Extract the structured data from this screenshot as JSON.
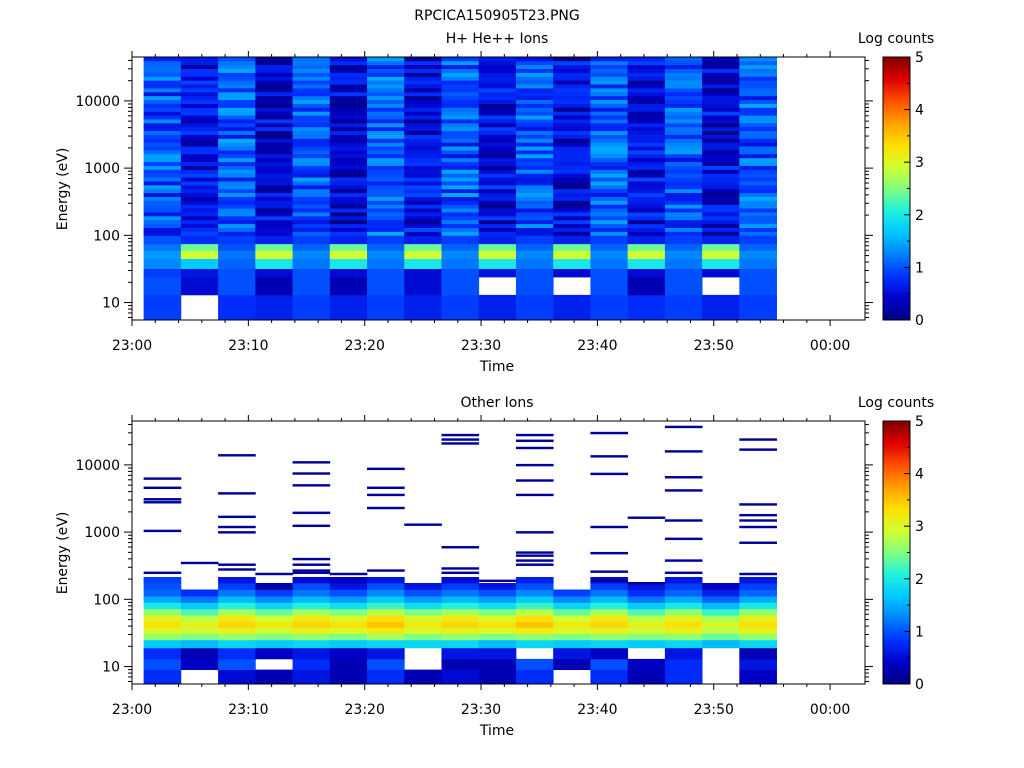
{
  "page_title": "RPCICA150905T23.PNG",
  "colors": {
    "colormap": [
      "#000080",
      "#0000c8",
      "#0030ff",
      "#0080ff",
      "#00c8ff",
      "#20f0e0",
      "#80ff80",
      "#d0ff30",
      "#ffe000",
      "#ffa000",
      "#ff5000",
      "#e00000",
      "#800000"
    ]
  },
  "chart_data": [
    {
      "type": "heatmap",
      "title": "H+ He++ Ions",
      "xlabel": "Time",
      "ylabel": "Energy (eV)",
      "x_ticks": [
        "23:00",
        "23:10",
        "23:20",
        "23:30",
        "23:40",
        "23:50",
        "00:00"
      ],
      "x_range_minutes": [
        0,
        63
      ],
      "y_scale": "log",
      "y_range": [
        5.5,
        45000
      ],
      "y_ticks": [
        "10",
        "100",
        "1000",
        "10000"
      ],
      "colorbar": {
        "label": "Log counts",
        "range": [
          0,
          5
        ],
        "ticks": [
          "0",
          "1",
          "2",
          "3",
          "4",
          "5"
        ]
      },
      "time_bins_minutes": [
        1,
        4.2,
        7.4,
        10.6,
        13.8,
        17,
        20.2,
        23.4,
        26.6,
        29.8,
        33,
        36.2,
        39.4,
        42.6,
        45.8,
        49,
        52.2,
        55.4
      ],
      "energy_bin_edges": [
        5.5,
        13,
        24,
        32,
        45,
        60,
        75,
        100,
        45000
      ],
      "low_energy_log_counts": [
        [
          0.9,
          null,
          0.8,
          0.7,
          0.9,
          0.7,
          0.9,
          0.7,
          0.9,
          0.7,
          0.9,
          0.7,
          0.9,
          0.8,
          0.9,
          0.7,
          0.9
        ],
        [
          1.0,
          0.5,
          1.0,
          0.3,
          1.0,
          0.3,
          1.0,
          0.5,
          1.0,
          null,
          1.0,
          null,
          1.0,
          0.3,
          1.0,
          null,
          1.0
        ],
        [
          0.9,
          0.6,
          1.0,
          0.5,
          1.0,
          0.5,
          1.0,
          0.5,
          1.0,
          0.6,
          1.0,
          0.5,
          1.0,
          0.5,
          1.0,
          0.5,
          1.0
        ],
        [
          1.3,
          1.7,
          1.1,
          2.0,
          1.2,
          2.0,
          1.2,
          2.0,
          1.2,
          2.0,
          1.2,
          2.0,
          1.2,
          2.0,
          1.2,
          2.0,
          1.2
        ],
        [
          1.4,
          2.9,
          1.2,
          2.9,
          1.3,
          2.9,
          1.3,
          2.9,
          1.3,
          2.9,
          1.3,
          2.9,
          1.3,
          2.9,
          1.3,
          2.9,
          1.3
        ],
        [
          1.2,
          2.4,
          1.0,
          2.4,
          1.1,
          2.4,
          1.1,
          2.4,
          1.1,
          2.4,
          1.1,
          2.4,
          1.1,
          2.4,
          1.1,
          2.4,
          1.1
        ],
        [
          1.0,
          0.8,
          0.9,
          0.7,
          0.9,
          0.7,
          0.9,
          0.7,
          0.9,
          0.7,
          0.9,
          0.7,
          0.9,
          0.7,
          0.9,
          0.7,
          0.9
        ]
      ],
      "high_energy_mean_log_counts": [
        1.0,
        0.55,
        1.05,
        0.5,
        1.0,
        0.45,
        1.1,
        0.55,
        1.05,
        0.5,
        1.0,
        0.5,
        1.05,
        0.55,
        1.0,
        0.5,
        1.05
      ]
    },
    {
      "type": "heatmap",
      "title": "Other Ions",
      "xlabel": "Time",
      "ylabel": "Energy (eV)",
      "x_ticks": [
        "23:00",
        "23:10",
        "23:20",
        "23:30",
        "23:40",
        "23:50",
        "00:00"
      ],
      "x_range_minutes": [
        0,
        63
      ],
      "y_scale": "log",
      "y_range": [
        5.5,
        45000
      ],
      "y_ticks": [
        "10",
        "100",
        "1000",
        "10000"
      ],
      "colorbar": {
        "label": "Log counts",
        "range": [
          0,
          5
        ],
        "ticks": [
          "0",
          "1",
          "2",
          "3",
          "4",
          "5"
        ]
      },
      "time_bins_minutes": [
        1,
        4.2,
        7.4,
        10.6,
        13.8,
        17,
        20.2,
        23.4,
        26.6,
        29.8,
        33,
        36.2,
        39.4,
        42.6,
        45.8,
        49,
        52.2,
        55.4
      ],
      "energy_bins": [
        {
          "range": [
            5.5,
            9
          ],
          "log_counts": [
            0.8,
            null,
            0.5,
            0.3,
            0.6,
            0.3,
            0.8,
            0.3,
            0.5,
            0.3,
            0.8,
            null,
            0.8,
            0.3,
            0.8,
            null,
            0.4
          ]
        },
        {
          "range": [
            9,
            13
          ],
          "log_counts": [
            1.0,
            0.4,
            1.0,
            null,
            0.8,
            0.3,
            1.0,
            null,
            0.3,
            0.3,
            1.0,
            0.3,
            1.0,
            0.4,
            0.8,
            null,
            0.6
          ]
        },
        {
          "range": [
            13,
            19
          ],
          "log_counts": [
            0.8,
            0.3,
            0.8,
            0.4,
            0.6,
            0.4,
            0.6,
            null,
            0.6,
            0.6,
            null,
            0.6,
            0.4,
            null,
            0.6,
            null,
            0.3
          ]
        },
        {
          "range": [
            19,
            25
          ],
          "log_counts": [
            1.7,
            1.6,
            1.8,
            1.7,
            1.8,
            1.7,
            1.8,
            1.8,
            1.8,
            1.6,
            1.8,
            1.7,
            1.8,
            1.7,
            1.8,
            1.6,
            1.8
          ]
        },
        {
          "range": [
            25,
            31
          ],
          "log_counts": [
            2.6,
            2.5,
            2.6,
            2.5,
            2.6,
            2.5,
            2.7,
            2.5,
            2.6,
            2.5,
            2.6,
            2.5,
            2.6,
            2.5,
            2.6,
            2.4,
            2.6
          ]
        },
        {
          "range": [
            31,
            38
          ],
          "log_counts": [
            3.0,
            2.9,
            3.1,
            2.9,
            3.1,
            3.0,
            3.2,
            3.0,
            3.1,
            3.0,
            3.2,
            3.0,
            3.1,
            2.9,
            3.1,
            2.8,
            3.1
          ]
        },
        {
          "range": [
            38,
            47
          ],
          "log_counts": [
            3.3,
            3.1,
            3.4,
            3.2,
            3.4,
            3.3,
            3.5,
            3.2,
            3.4,
            3.3,
            3.5,
            3.2,
            3.4,
            3.1,
            3.3,
            3.0,
            3.3
          ]
        },
        {
          "range": [
            47,
            58
          ],
          "log_counts": [
            3.1,
            2.8,
            3.2,
            2.9,
            3.2,
            3.0,
            3.3,
            3.0,
            3.2,
            3.0,
            3.3,
            2.9,
            3.2,
            2.8,
            3.1,
            2.7,
            3.1
          ]
        },
        {
          "range": [
            58,
            72
          ],
          "log_counts": [
            2.6,
            2.3,
            2.7,
            2.4,
            2.7,
            2.5,
            2.8,
            2.5,
            2.7,
            2.5,
            2.8,
            2.4,
            2.7,
            2.3,
            2.6,
            2.2,
            2.6
          ]
        },
        {
          "range": [
            72,
            90
          ],
          "log_counts": [
            2.0,
            1.7,
            2.1,
            1.8,
            2.1,
            1.9,
            2.2,
            1.9,
            2.1,
            1.9,
            2.2,
            1.8,
            2.1,
            1.7,
            2.0,
            1.6,
            2.0
          ]
        },
        {
          "range": [
            90,
            112
          ],
          "log_counts": [
            1.5,
            1.2,
            1.6,
            1.3,
            1.6,
            1.4,
            1.7,
            1.4,
            1.6,
            1.4,
            1.7,
            1.3,
            1.6,
            1.2,
            1.5,
            1.1,
            1.5
          ]
        },
        {
          "range": [
            112,
            140
          ],
          "log_counts": [
            1.1,
            0.8,
            1.2,
            0.9,
            1.2,
            1.0,
            1.3,
            1.0,
            1.2,
            1.0,
            1.3,
            0.9,
            1.2,
            0.8,
            1.1,
            0.7,
            1.1
          ]
        },
        {
          "range": [
            140,
            175
          ],
          "log_counts": [
            1.0,
            null,
            0.9,
            0.3,
            1.0,
            0.6,
            1.0,
            0.6,
            0.9,
            0.6,
            1.0,
            null,
            0.9,
            0.6,
            0.9,
            0.4,
            0.9
          ]
        },
        {
          "range": [
            175,
            215
          ],
          "log_counts": [
            0.9,
            null,
            0.6,
            null,
            0.5,
            0.4,
            0.6,
            null,
            0.5,
            null,
            0.7,
            null,
            0.5,
            null,
            0.6,
            null,
            0.6
          ]
        }
      ],
      "sparse_high_energy_counts": [
        {
          "bin": 1,
          "energies_ev": [
            250,
            1050,
            2800,
            3100,
            4600,
            6300
          ]
        },
        {
          "bin": 2,
          "energies_ev": [
            350
          ]
        },
        {
          "bin": 3,
          "energies_ev": [
            280,
            330,
            1000,
            1200,
            1700,
            3800,
            14000
          ]
        },
        {
          "bin": 4,
          "energies_ev": [
            150,
            240
          ]
        },
        {
          "bin": 5,
          "energies_ev": [
            250,
            270,
            330,
            400,
            1250,
            1950,
            5000,
            7500,
            11000
          ]
        },
        {
          "bin": 6,
          "energies_ev": [
            240
          ]
        },
        {
          "bin": 7,
          "energies_ev": [
            270,
            2300,
            3600,
            4600,
            8800
          ]
        },
        {
          "bin": 8,
          "energies_ev": [
            1300
          ]
        },
        {
          "bin": 9,
          "energies_ev": [
            250,
            290,
            600,
            21000,
            24000,
            28000
          ]
        },
        {
          "bin": 10,
          "energies_ev": [
            190
          ]
        },
        {
          "bin": 11,
          "energies_ev": [
            330,
            380,
            450,
            500,
            1000,
            3600,
            5900,
            10000,
            18000,
            23000,
            28000
          ]
        },
        {
          "bin": 13,
          "energies_ev": [
            190,
            260,
            490,
            1200,
            7400,
            13500,
            30000
          ]
        },
        {
          "bin": 14,
          "energies_ev": [
            175,
            1650
          ]
        },
        {
          "bin": 15,
          "energies_ev": [
            250,
            380,
            800,
            1500,
            4200,
            6600,
            16000,
            37000
          ]
        },
        {
          "bin": 17,
          "energies_ev": [
            240,
            700,
            1200,
            1500,
            1800,
            2600,
            17000,
            24000
          ]
        }
      ]
    }
  ]
}
